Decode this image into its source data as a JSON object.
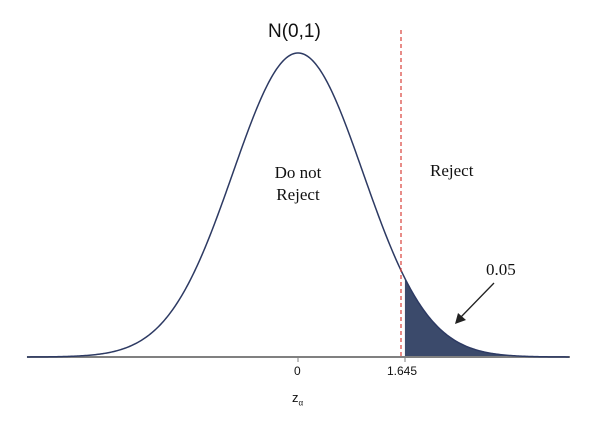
{
  "chart_data": {
    "type": "area",
    "title": "N(0,1)",
    "xlabel": "z_α",
    "ylabel": "",
    "distribution": "standard normal",
    "x_range": [
      -4.17,
      4.18
    ],
    "x_ticks": [
      {
        "value": 0,
        "label": "0"
      },
      {
        "value": 1.645,
        "label": "1.645"
      }
    ],
    "critical_value": 1.645,
    "critical_line": {
      "x": 1.645,
      "style": "dashed",
      "color": "#d9403a"
    },
    "shaded_region": {
      "from": 1.645,
      "to": 4.18,
      "area": 0.05,
      "color": "#3b4a6b"
    },
    "annotations": [
      {
        "text": "Do not Reject",
        "region": "left of critical value"
      },
      {
        "text": "Reject",
        "region": "right of critical value"
      },
      {
        "text": "0.05",
        "points_to": "shaded tail area"
      }
    ],
    "grid": false,
    "legend": null
  },
  "labels": {
    "title": "N(0,1)",
    "do_not_line1": "Do not",
    "do_not_line2": "Reject",
    "reject": "Reject",
    "alpha": "0.05",
    "tick0": "0",
    "tick1": "1.645",
    "xlabel_main": "z",
    "xlabel_sub": "α"
  },
  "colors": {
    "curve": "#2d3a63",
    "fill": "#3b4a6b",
    "critical": "#d9403a",
    "axis": "#808080"
  }
}
